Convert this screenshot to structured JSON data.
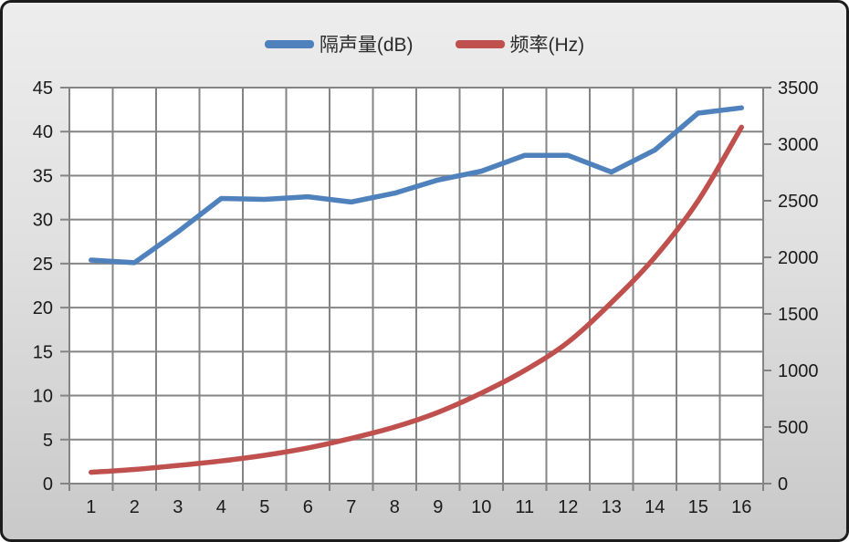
{
  "chart_data": {
    "type": "line",
    "title": "",
    "categories": [
      1,
      2,
      3,
      4,
      5,
      6,
      7,
      8,
      9,
      10,
      11,
      12,
      13,
      14,
      15,
      16
    ],
    "series": [
      {
        "name": "隔声量(dB)",
        "axis": "left",
        "color": "#4F81BD",
        "smooth": false,
        "values": [
          25.4,
          25.1,
          28.6,
          32.4,
          32.3,
          32.6,
          32.0,
          33.0,
          34.5,
          35.5,
          37.3,
          37.3,
          35.4,
          37.9,
          42.1,
          42.7
        ]
      },
      {
        "name": "频率(Hz)",
        "axis": "right",
        "color": "#C0504D",
        "smooth": true,
        "values": [
          100,
          125,
          160,
          200,
          250,
          315,
          400,
          500,
          630,
          800,
          1000,
          1250,
          1600,
          2000,
          2500,
          3150
        ]
      }
    ],
    "left_axis": {
      "min": 0,
      "max": 45,
      "step": 5,
      "ticks": [
        0,
        5,
        10,
        15,
        20,
        25,
        30,
        35,
        40,
        45
      ]
    },
    "right_axis": {
      "min": 0,
      "max": 3500,
      "step": 500,
      "ticks": [
        0,
        500,
        1000,
        1500,
        2000,
        2500,
        3000,
        3500
      ]
    },
    "x_axis": {
      "ticks": [
        "1",
        "2",
        "3",
        "4",
        "5",
        "6",
        "7",
        "8",
        "9",
        "10",
        "11",
        "12",
        "13",
        "14",
        "15",
        "16"
      ]
    },
    "grid": true,
    "legend_position": "top"
  },
  "style": {
    "series1_color": "#4F81BD",
    "series2_color": "#C0504D",
    "gridline_color": "#848484",
    "plot_background": "#FFFFFF",
    "frame_border_color": "#1C1C1C",
    "text_color": "#1A1A1A"
  }
}
